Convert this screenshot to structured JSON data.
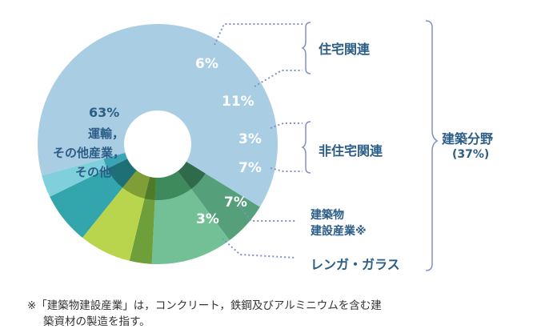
{
  "chart_data": {
    "type": "pie",
    "title": "",
    "slices": [
      {
        "label": "運輸，その他産業，その他",
        "value": 63,
        "value_label": "63%",
        "color": "#a9cde3",
        "label_lines": [
          "運輸，",
          "その他産業，",
          "その他"
        ]
      },
      {
        "label": "住宅関連",
        "value": 6,
        "value_label": "6%",
        "color": "#55a07a"
      },
      {
        "label": "住宅関連",
        "value": 11,
        "value_label": "11%",
        "color": "#73c096"
      },
      {
        "label": "非住宅関連",
        "value": 3,
        "value_label": "3%",
        "color": "#6f9f3a"
      },
      {
        "label": "非住宅関連",
        "value": 7,
        "value_label": "7%",
        "color": "#b9d54d"
      },
      {
        "label": "建築物建設産業※",
        "value": 7,
        "value_label": "7%",
        "color": "#33a5ad"
      },
      {
        "label": "レンガ・ガラス",
        "value": 3,
        "value_label": "3%",
        "color": "#7fd0dc"
      }
    ],
    "groups": [
      {
        "label": "住宅関連"
      },
      {
        "label": "非住宅関連"
      },
      {
        "label": "建築物建設産業※",
        "lines": [
          "建築物",
          "建設産業※"
        ]
      },
      {
        "label": "レンガ・ガラス"
      }
    ],
    "summary": {
      "label": "建築分野",
      "value_label": "(37%)"
    }
  },
  "footnote": {
    "line1": "※「建築物建設産業」は，コンクリート，鉄鋼及びアルミニウムを含む建",
    "line2": "築資材の製造を指す。"
  }
}
